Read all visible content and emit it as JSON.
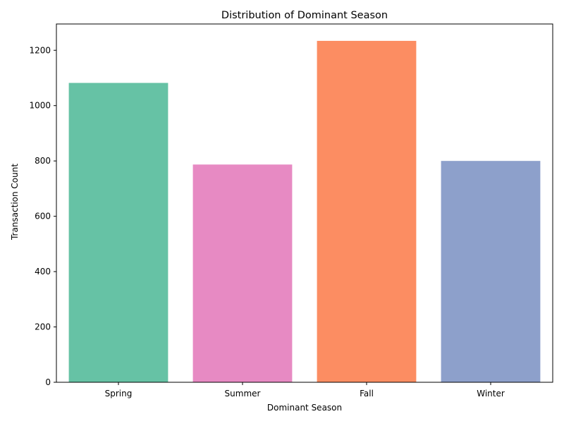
{
  "chart_data": {
    "type": "bar",
    "title": "Distribution of Dominant Season",
    "xlabel": "Dominant Season",
    "ylabel": "Transaction Count",
    "categories": [
      "Spring",
      "Summer",
      "Fall",
      "Winter"
    ],
    "values": [
      1082,
      787,
      1234,
      800
    ],
    "colors": [
      "#66c2a5",
      "#e78ac3",
      "#fc8d62",
      "#8da0cb"
    ],
    "ylim": [
      0,
      1295
    ],
    "yticks": [
      0,
      200,
      400,
      600,
      800,
      1000,
      1200
    ],
    "grid": false,
    "legend": "none"
  }
}
